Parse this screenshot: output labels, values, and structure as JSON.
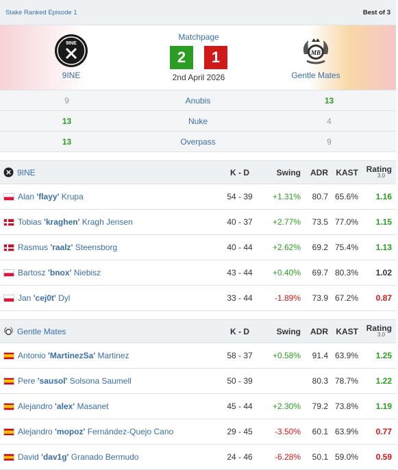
{
  "event": "Stake Ranked Episode 1",
  "format": "Best of 3",
  "match": {
    "matchpage_label": "Matchpage",
    "date": "2nd April 2026",
    "team1": {
      "name": "9INE",
      "score": "2"
    },
    "team2": {
      "name": "Gentle Mates",
      "score": "1"
    }
  },
  "maps": [
    {
      "left": "9",
      "name": "Anubis",
      "right": "13"
    },
    {
      "left": "13",
      "name": "Nuke",
      "right": "4"
    },
    {
      "left": "13",
      "name": "Overpass",
      "right": "9"
    }
  ],
  "headers": {
    "kd": "K - D",
    "swing": "Swing",
    "adr": "ADR",
    "kast": "KAST",
    "rating": "Rating",
    "rating_version": "3.0"
  },
  "tables": [
    {
      "team": "9INE",
      "players": [
        {
          "first": "Alan ",
          "nick": "'flayy'",
          "last": " Krupa",
          "flag": "pl",
          "kd": "54 - 39",
          "swing": "+1.31%",
          "adr": "80.7",
          "kast": "65.6%",
          "rating": "1.16"
        },
        {
          "first": "Tobias ",
          "nick": "'kraghen'",
          "last": " Kragh Jensen",
          "flag": "dk",
          "kd": "40 - 37",
          "swing": "+2.77%",
          "adr": "73.5",
          "kast": "77.0%",
          "rating": "1.15"
        },
        {
          "first": "Rasmus ",
          "nick": "'raalz'",
          "last": " Steensborg",
          "flag": "dk",
          "kd": "40 - 44",
          "swing": "+2.62%",
          "adr": "69.2",
          "kast": "75.4%",
          "rating": "1.13"
        },
        {
          "first": "Bartosz ",
          "nick": "'bnox'",
          "last": " Niebisz",
          "flag": "pl",
          "kd": "43 - 44",
          "swing": "+0.40%",
          "adr": "69.7",
          "kast": "80.3%",
          "rating": "1.02"
        },
        {
          "first": "Jan ",
          "nick": "'cej0t'",
          "last": " Dyl",
          "flag": "pl",
          "kd": "33 - 44",
          "swing": "-1.89%",
          "adr": "73.9",
          "kast": "67.2%",
          "rating": "0.87"
        }
      ]
    },
    {
      "team": "Gentle Mates",
      "players": [
        {
          "first": "Antonio ",
          "nick": "'MartinezSa'",
          "last": " Martinez",
          "flag": "es",
          "kd": "58 - 37",
          "swing": "+0.58%",
          "adr": "91.4",
          "kast": "63.9%",
          "rating": "1.25"
        },
        {
          "first": "Pere ",
          "nick": "'sausol'",
          "last": " Solsona Saumell",
          "flag": "es",
          "kd": "50 - 39",
          "swing": "",
          "adr": "80.3",
          "kast": "78.7%",
          "rating": "1.22"
        },
        {
          "first": "Alejandro ",
          "nick": "'alex'",
          "last": " Masanet",
          "flag": "es",
          "kd": "45 - 44",
          "swing": "+2.30%",
          "adr": "79.2",
          "kast": "73.8%",
          "rating": "1.19"
        },
        {
          "first": "Alejandro ",
          "nick": "'mopoz'",
          "last": " Fernández-Quejo Cano",
          "flag": "es",
          "kd": "29 - 45",
          "swing": "-3.50%",
          "adr": "60.1",
          "kast": "63.9%",
          "rating": "0.77"
        },
        {
          "first": "David ",
          "nick": "'dav1g'",
          "last": " Granado Bermudo",
          "flag": "es",
          "kd": "24 - 46",
          "swing": "-6.28%",
          "adr": "50.1",
          "kast": "59.0%",
          "rating": "0.59"
        }
      ]
    }
  ]
}
